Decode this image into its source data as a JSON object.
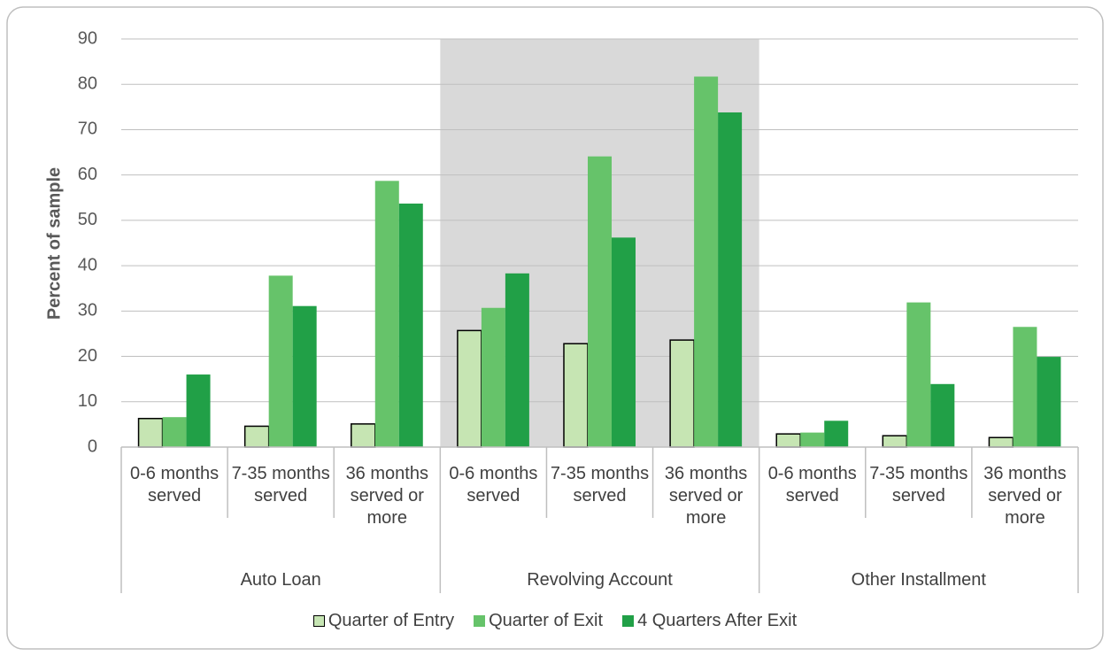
{
  "chart_data": {
    "type": "bar",
    "y_label": "Percent of sample",
    "groups": [
      "Auto Loan",
      "Revolving Account",
      "Other Installment"
    ],
    "categories": [
      "0-6 months served",
      "7-35 months served",
      "36 months served or more",
      "0-6 months served",
      "7-35 months served",
      "36 months served or more",
      "0-6 months served",
      "7-35 months served",
      "36 months served or more"
    ],
    "series": [
      {
        "name": "Quarter of Entry",
        "color": "#c6e5b3",
        "stroke": "#000000",
        "values": [
          6.3,
          4.6,
          5.1,
          25.7,
          22.8,
          23.6,
          2.9,
          2.5,
          2.1
        ]
      },
      {
        "name": "Quarter of Exit",
        "color": "#66c36a",
        "values": [
          6.6,
          37.8,
          58.7,
          30.7,
          64.1,
          81.7,
          3.2,
          31.9,
          26.5
        ]
      },
      {
        "name": "4 Quarters After Exit",
        "color": "#21a047",
        "values": [
          16.0,
          31.1,
          53.7,
          38.3,
          46.2,
          73.8,
          5.8,
          13.9,
          19.9
        ]
      }
    ],
    "ylim": [
      0,
      90
    ],
    "yticks": [
      0,
      10,
      20,
      30,
      40,
      50,
      60,
      70,
      80,
      90
    ],
    "grid": true,
    "highlight_group": "Revolving Account",
    "highlight_color": "#d9d9d9",
    "legend": "bottom"
  }
}
